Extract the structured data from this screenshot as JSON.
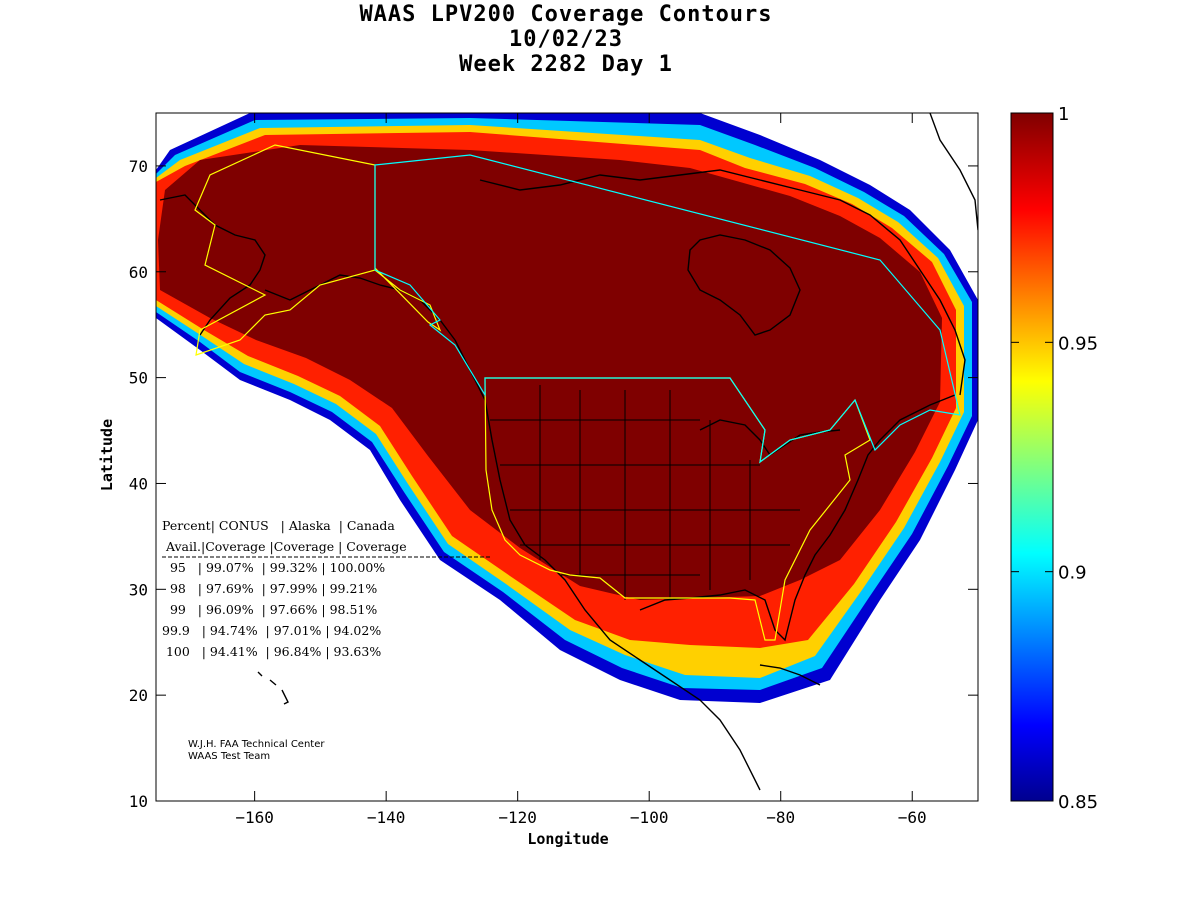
{
  "title": {
    "line1": "WAAS LPV200 Coverage Contours",
    "line2": "10/02/23",
    "line3": "Week 2282 Day 1"
  },
  "axes": {
    "xlabel": "Longitude",
    "ylabel": "Latitude",
    "xticks": [
      -160,
      -140,
      -120,
      -100,
      -80,
      -60
    ],
    "yticks": [
      10,
      20,
      30,
      40,
      50,
      60,
      70
    ],
    "xlim": [
      -175,
      -50
    ],
    "ylim": [
      10,
      75
    ]
  },
  "colorbar": {
    "ticks": [
      "1",
      "0.95",
      "0.9",
      "0.85"
    ],
    "range": [
      0.85,
      1.0
    ],
    "colormap": "jet"
  },
  "coverage_table": {
    "header1": "Percent| CONUS   | Alaska  | Canada",
    "header2": " Avail.|Coverage |Coverage | Coverage",
    "rows": [
      "  95   | 99.07%  | 99.32% | 100.00%",
      "  98   | 97.69%  | 97.99% | 99.21%",
      "  99   | 96.09%  | 97.66% | 98.51%",
      "99.9   | 94.74%  | 97.01% | 94.02%",
      " 100   | 94.41%  | 96.84% | 93.63%"
    ]
  },
  "credit": {
    "line1": "W.J.H. FAA Technical Center",
    "line2": "WAAS Test Team"
  },
  "colors": {
    "full_coverage": "#7f0000",
    "service_boundary_yellow": "#ffff00",
    "service_boundary_cyan": "#00ffff",
    "coastline": "#000000"
  }
}
